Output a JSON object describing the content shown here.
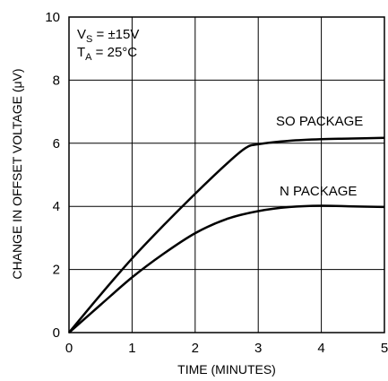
{
  "chart_data": {
    "type": "line",
    "xlabel": "TIME (MINUTES)",
    "ylabel": "CHANGE IN OFFSET VOLTAGE (μV)",
    "xlim": [
      0,
      5
    ],
    "ylim": [
      0,
      10
    ],
    "xticks": [
      "0",
      "1",
      "2",
      "3",
      "4",
      "5"
    ],
    "yticks": [
      "0",
      "2",
      "4",
      "6",
      "8",
      "10"
    ],
    "grid": true,
    "legend": "none",
    "conditions": {
      "vs": {
        "main": "V",
        "sub": "S",
        "value": " = ±15V"
      },
      "ta": {
        "main": "T",
        "sub": "A",
        "value": " = 25°C"
      }
    },
    "series": [
      {
        "name": "SO PACKAGE",
        "color": "#000000",
        "x": [
          0,
          0.5,
          1,
          1.5,
          2,
          2.5,
          2.8,
          3,
          3.5,
          4,
          4.5,
          5
        ],
        "y": [
          0,
          1.2,
          2.35,
          3.4,
          4.4,
          5.35,
          5.85,
          5.97,
          6.08,
          6.13,
          6.15,
          6.17
        ]
      },
      {
        "name": "N PACKAGE",
        "color": "#000000",
        "x": [
          0,
          0.5,
          1,
          1.5,
          2,
          2.5,
          3,
          3.5,
          4,
          4.5,
          5
        ],
        "y": [
          0,
          0.88,
          1.75,
          2.5,
          3.15,
          3.6,
          3.85,
          3.98,
          4.02,
          4.0,
          3.98
        ]
      }
    ]
  }
}
